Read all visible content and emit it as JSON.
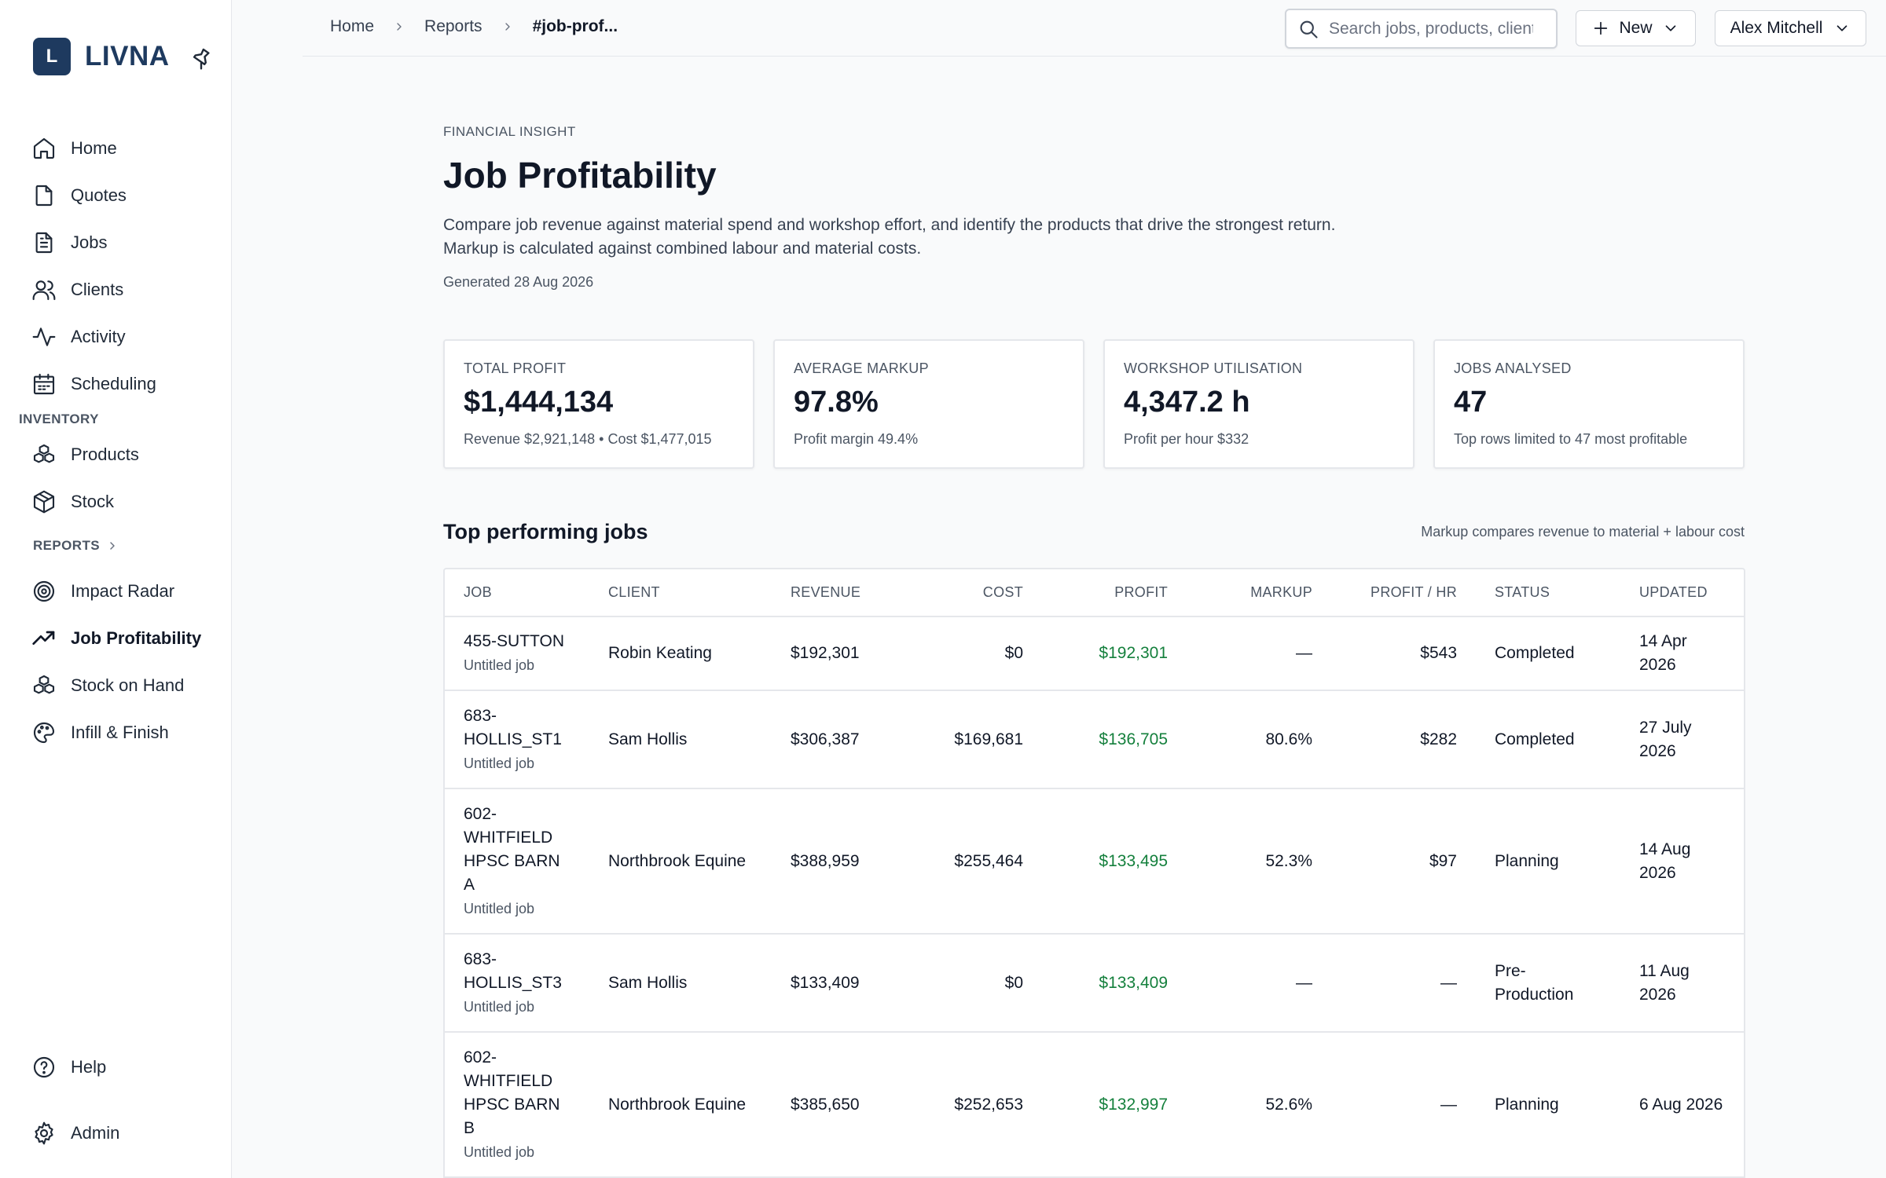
{
  "brand": {
    "initial": "L",
    "name": "LIVNA"
  },
  "sidebar": {
    "main_items": [
      {
        "label": "Home",
        "icon": "home-icon"
      },
      {
        "label": "Quotes",
        "icon": "file-icon"
      },
      {
        "label": "Jobs",
        "icon": "clipboard-icon"
      },
      {
        "label": "Clients",
        "icon": "users-icon"
      },
      {
        "label": "Activity",
        "icon": "activity-icon"
      },
      {
        "label": "Scheduling",
        "icon": "calendar-icon"
      }
    ],
    "inventory_label": "INVENTORY",
    "inventory_items": [
      {
        "label": "Products",
        "icon": "boxes-icon"
      },
      {
        "label": "Stock",
        "icon": "package-icon"
      }
    ],
    "reports_label": "REPORTS",
    "reports_items": [
      {
        "label": "Impact Radar",
        "icon": "target-icon"
      },
      {
        "label": "Job Profitability",
        "icon": "trending-up-icon"
      },
      {
        "label": "Stock on Hand",
        "icon": "boxes-icon"
      },
      {
        "label": "Infill & Finish",
        "icon": "palette-icon"
      }
    ],
    "help_label": "Help",
    "admin_label": "Admin"
  },
  "header": {
    "breadcrumbs": [
      "Home",
      "Reports",
      "#job-prof..."
    ],
    "search_placeholder": "Search jobs, products, clients",
    "new_label": "New",
    "user_name": "Alex Mitchell"
  },
  "page": {
    "eyebrow": "FINANCIAL INSIGHT",
    "title": "Job Profitability",
    "description_line1": "Compare job revenue against material spend and workshop effort, and identify the products that drive the strongest return.",
    "description_line2": "Markup is calculated against combined labour and material costs.",
    "generated": "Generated 28 Aug 2026"
  },
  "kpis": [
    {
      "label": "TOTAL PROFIT",
      "value": "$1,444,134",
      "sub": "Revenue $2,921,148 • Cost $1,477,015"
    },
    {
      "label": "AVERAGE MARKUP",
      "value": "97.8%",
      "sub": "Profit margin 49.4%"
    },
    {
      "label": "WORKSHOP UTILISATION",
      "value": "4,347.2 h",
      "sub": "Profit per hour $332"
    },
    {
      "label": "JOBS ANALYSED",
      "value": "47",
      "sub": "Top rows limited to 47 most profitable"
    }
  ],
  "table": {
    "title": "Top performing jobs",
    "note": "Markup compares revenue to material + labour cost",
    "columns": [
      "JOB",
      "CLIENT",
      "REVENUE",
      "COST",
      "PROFIT",
      "MARKUP",
      "PROFIT / HR",
      "STATUS",
      "UPDATED"
    ],
    "rows": [
      {
        "job": "455-SUTTON",
        "job_sub": "Untitled job",
        "client": "Robin Keating",
        "revenue": "$192,301",
        "cost": "$0",
        "profit": "$192,301",
        "markup": "—",
        "profit_hr": "$543",
        "status": "Completed",
        "updated": "14 Apr 2026"
      },
      {
        "job": "683-HOLLIS_ST1",
        "job_sub": "Untitled job",
        "client": "Sam Hollis",
        "revenue": "$306,387",
        "cost": "$169,681",
        "profit": "$136,705",
        "markup": "80.6%",
        "profit_hr": "$282",
        "status": "Completed",
        "updated": "27 July 2026"
      },
      {
        "job": "602-WHITFIELD HPSC BARN A",
        "job_sub": "Untitled job",
        "client": "Northbrook Equine",
        "revenue": "$388,959",
        "cost": "$255,464",
        "profit": "$133,495",
        "markup": "52.3%",
        "profit_hr": "$97",
        "status": "Planning",
        "updated": "14 Aug 2026"
      },
      {
        "job": "683-HOLLIS_ST3",
        "job_sub": "Untitled job",
        "client": "Sam Hollis",
        "revenue": "$133,409",
        "cost": "$0",
        "profit": "$133,409",
        "markup": "—",
        "profit_hr": "—",
        "status": "Pre-Production",
        "updated": "11 Aug 2026"
      },
      {
        "job": "602-WHITFIELD HPSC BARN B",
        "job_sub": "Untitled job",
        "client": "Northbrook Equine",
        "revenue": "$385,650",
        "cost": "$252,653",
        "profit": "$132,997",
        "markup": "52.6%",
        "profit_hr": "—",
        "status": "Planning",
        "updated": "6 Aug 2026"
      }
    ]
  },
  "colors": {
    "brand": "#1e3a5f",
    "profit": "#15803d"
  }
}
